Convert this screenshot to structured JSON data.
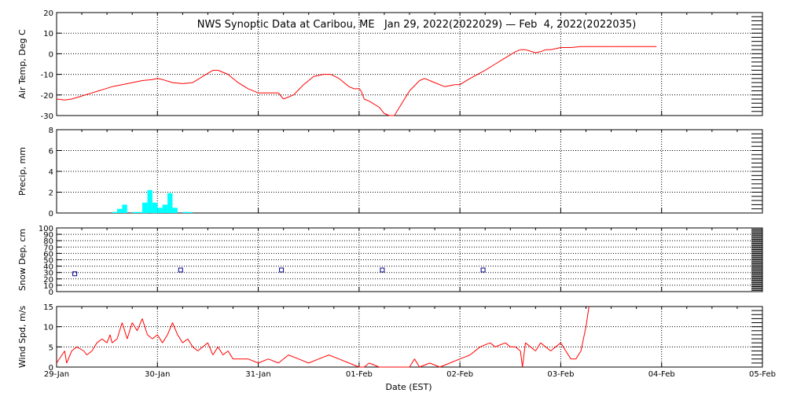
{
  "title": "NWS Synoptic Data at Caribou, ME   Jan 29, 2022(2022029) — Feb  4, 2022(2022035)",
  "x_axis": {
    "label": "Date (EST)",
    "ticks": [
      "29-Jan",
      "30-Jan",
      "31-Jan",
      "01-Feb",
      "02-Feb",
      "03-Feb",
      "04-Feb",
      "05-Feb"
    ],
    "range_days": [
      0,
      7
    ]
  },
  "colors": {
    "temperature": "#ff0000",
    "precip": "#00ffff",
    "snow": "#00008b",
    "wind": "#ff0000",
    "grid": "#000000"
  },
  "chart_data": [
    {
      "type": "line",
      "ylabel": "Air Temp, Deg C",
      "ylim": [
        -30,
        20
      ],
      "yticks": [
        -30,
        -20,
        -10,
        0,
        10,
        20
      ],
      "grid": "dotted",
      "series": [
        {
          "x": [
            0,
            0.08,
            0.15,
            0.25,
            0.35,
            0.45,
            0.55,
            0.65,
            0.75,
            0.85,
            0.95,
            1.0,
            1.05,
            1.15,
            1.25,
            1.35,
            1.45,
            1.55,
            1.6,
            1.7,
            1.8,
            1.9,
            2.0,
            2.1,
            2.2,
            2.25,
            2.35,
            2.45,
            2.55,
            2.65,
            2.72,
            2.8,
            2.9,
            2.95,
            3.0,
            3.02,
            3.05,
            3.1,
            3.2,
            3.25,
            3.3,
            3.35,
            3.4,
            3.5,
            3.6,
            3.65,
            3.7,
            3.75,
            3.85,
            3.95,
            4.0,
            4.1,
            4.25,
            4.35,
            4.45,
            4.55,
            4.6,
            4.65,
            4.75,
            4.8,
            4.85,
            4.9,
            5.0,
            5.1,
            5.2,
            5.5,
            5.95
          ],
          "y": [
            -22,
            -22.5,
            -22,
            -20.5,
            -19,
            -17.5,
            -16,
            -15,
            -14,
            -13,
            -12.5,
            -12,
            -12.5,
            -14,
            -14.5,
            -14,
            -11,
            -8,
            -8,
            -10,
            -14,
            -17,
            -19,
            -19,
            -19,
            -22,
            -20,
            -15,
            -11,
            -10,
            -10,
            -12,
            -16,
            -17,
            -17,
            -18,
            -22,
            -23,
            -26,
            -29,
            -30,
            -30,
            -26,
            -18,
            -13,
            -12,
            -13,
            -14,
            -16,
            -15,
            -15,
            -12,
            -8,
            -5,
            -2,
            1,
            2,
            2,
            0.5,
            1,
            2,
            2,
            3,
            3,
            3.5,
            3.5,
            3.5
          ]
        }
      ]
    },
    {
      "type": "bar",
      "ylabel": "Precip, mm",
      "ylim": [
        0,
        8
      ],
      "yticks": [
        0,
        2,
        4,
        6,
        8
      ],
      "grid": "dotted",
      "series": [
        {
          "x": [
            0.55,
            0.6,
            0.65,
            0.75,
            0.8,
            0.85,
            0.9,
            0.95,
            1.0,
            1.05,
            1.1,
            1.15,
            1.25,
            1.3
          ],
          "y": [
            0.1,
            0.4,
            0.8,
            0.1,
            0.1,
            1.0,
            2.2,
            1.0,
            0.5,
            0.8,
            1.9,
            0.5,
            0.1,
            0.1
          ]
        }
      ]
    },
    {
      "type": "scatter",
      "ylabel": "Snow Dep, cm",
      "ylim": [
        0,
        100
      ],
      "yticks": [
        0,
        10,
        20,
        30,
        40,
        50,
        60,
        70,
        80,
        90,
        100
      ],
      "grid": "dotted",
      "series": [
        {
          "x": [
            0.18,
            1.23,
            2.23,
            3.23,
            4.23
          ],
          "y": [
            28,
            34,
            34,
            34,
            34
          ]
        }
      ]
    },
    {
      "type": "line",
      "ylabel": "Wind Spd, m/s",
      "ylim": [
        0,
        15
      ],
      "yticks": [
        0,
        5,
        10,
        15
      ],
      "grid": "dotted",
      "series": [
        {
          "x": [
            0.0,
            0.08,
            0.1,
            0.15,
            0.2,
            0.27,
            0.3,
            0.35,
            0.4,
            0.45,
            0.5,
            0.53,
            0.55,
            0.6,
            0.65,
            0.7,
            0.75,
            0.8,
            0.85,
            0.9,
            0.95,
            1.0,
            1.05,
            1.1,
            1.15,
            1.2,
            1.25,
            1.3,
            1.35,
            1.4,
            1.45,
            1.5,
            1.55,
            1.6,
            1.65,
            1.7,
            1.75,
            1.8,
            1.9,
            2.0,
            2.1,
            2.2,
            2.3,
            2.4,
            2.5,
            2.6,
            2.7,
            2.8,
            2.9,
            3.0,
            3.05,
            3.1,
            3.2,
            3.25,
            3.3,
            3.5,
            3.55,
            3.6,
            3.7,
            3.8,
            3.9,
            4.0,
            4.1,
            4.2,
            4.3,
            4.35,
            4.45,
            4.5,
            4.55,
            4.6,
            4.62,
            4.65,
            4.75,
            4.8,
            4.9,
            5.0,
            5.05,
            5.1,
            5.15,
            5.2,
            5.25,
            5.28
          ],
          "y": [
            1,
            4,
            1,
            4,
            5,
            4,
            3,
            4,
            6,
            7,
            6,
            8,
            6,
            7,
            11,
            7,
            11,
            9,
            12,
            8,
            7,
            8,
            6,
            8,
            11,
            8,
            6,
            7,
            5,
            4,
            5,
            6,
            3,
            5,
            3,
            4,
            2,
            2,
            2,
            1,
            2,
            1,
            3,
            2,
            1,
            2,
            3,
            2,
            1,
            0,
            0,
            1,
            0,
            0,
            0,
            0,
            2,
            0,
            1,
            0,
            1,
            2,
            3,
            5,
            6,
            5,
            6,
            5,
            5,
            4,
            0,
            6,
            4,
            6,
            4,
            6,
            4,
            2,
            2,
            4,
            10,
            15
          ]
        }
      ]
    }
  ]
}
